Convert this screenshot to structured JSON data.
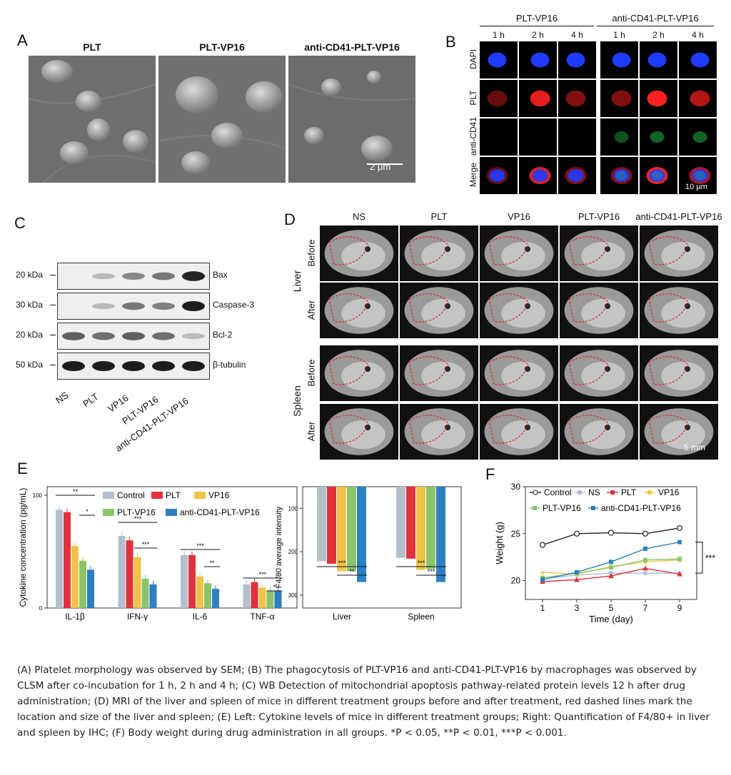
{
  "panelA": {
    "label": "A",
    "titles": [
      "PLT",
      "PLT-VP16",
      "anti-CD41-PLT-VP16"
    ],
    "scalebar": "2 μm"
  },
  "panelB": {
    "label": "B",
    "groups": [
      "PLT-VP16",
      "anti-CD41-PLT-VP16"
    ],
    "times": [
      "1 h",
      "2 h",
      "4 h",
      "1 h",
      "2 h",
      "4 h"
    ],
    "rows": [
      "DAPI",
      "PLT",
      "anti-CD41",
      "Merge"
    ],
    "scalebar": "10 μm"
  },
  "panelC": {
    "label": "C",
    "blots": [
      {
        "marker": "20 kDa",
        "protein": "Bax"
      },
      {
        "marker": "30 kDa",
        "protein": "Caspase-3"
      },
      {
        "marker": "20 kDa",
        "protein": "Bcl-2"
      },
      {
        "marker": "50 kDa",
        "protein": "β-tubulin"
      }
    ],
    "lanes": [
      "NS",
      "PLT",
      "VP16",
      "PLT-VP16",
      "anti-CD41-PLT-VP16"
    ]
  },
  "panelD": {
    "label": "D",
    "columns": [
      "NS",
      "PLT",
      "VP16",
      "PLT-VP16",
      "anti-CD41-PLT-VP16"
    ],
    "organs": [
      "Liver",
      "Spleen"
    ],
    "timepoints": [
      "Before",
      "After"
    ],
    "scalebar": "5 mm"
  },
  "panelE": {
    "label": "E",
    "colors": [
      "#b4bfcc",
      "#e0323c",
      "#efc34a",
      "#8cc46c",
      "#2e7fc2"
    ],
    "legend": [
      "Control",
      "PLT",
      "VP16",
      "PLT-VP16",
      "anti-CD41-PLT-VP16"
    ],
    "left_ylabel": "Cytokine concentration (pg/mL)",
    "right_ylabel": "F4/80 average intensity",
    "left_yticks": [
      "0",
      "100"
    ],
    "right_yticks": [
      "100",
      "200",
      "300"
    ],
    "left_categories": [
      "IL-1β",
      "IFN-γ",
      "IL-6",
      "TNF-α"
    ],
    "right_categories": [
      "Liver",
      "Spleen"
    ],
    "sig_left": [
      "**",
      "*",
      "***",
      "***",
      "***",
      "**",
      "***",
      "*"
    ],
    "sig_right": [
      "***",
      "**",
      "***",
      "***"
    ]
  },
  "panelF": {
    "label": "F",
    "legend_row1": [
      "Control",
      "NS",
      "PLT",
      "VP16"
    ],
    "legend_row2": [
      "PLT-VP16",
      "anti-CD41-PLT-VP16"
    ],
    "xlabel": "Time (day)",
    "ylabel": "Weight (g)",
    "xticks": [
      "1",
      "3",
      "5",
      "7",
      "9"
    ],
    "yticks": [
      "20",
      "25",
      "30"
    ],
    "sig": "***"
  },
  "chart_data": [
    {
      "type": "bar",
      "categories": [
        "IL-1β",
        "IFN-γ",
        "IL-6",
        "TNF-α"
      ],
      "ylim": [
        0,
        100
      ],
      "series": [
        {
          "name": "Control",
          "values": [
            87,
            64,
            47,
            21
          ]
        },
        {
          "name": "PLT",
          "values": [
            85,
            60,
            47,
            23
          ]
        },
        {
          "name": "VP16",
          "values": [
            55,
            45,
            28,
            18
          ]
        },
        {
          "name": "PLT-VP16",
          "values": [
            42,
            26,
            22,
            15
          ]
        },
        {
          "name": "anti-CD41-PLT-VP16",
          "values": [
            34,
            21,
            17,
            15
          ]
        }
      ]
    },
    {
      "type": "bar",
      "categories": [
        "Liver",
        "Spleen"
      ],
      "ylim": [
        330,
        50
      ],
      "series": [
        {
          "name": "Control",
          "values": [
            222,
            214
          ]
        },
        {
          "name": "PLT",
          "values": [
            228,
            216
          ]
        },
        {
          "name": "VP16",
          "values": [
            245,
            242
          ]
        },
        {
          "name": "PLT-VP16",
          "values": [
            245,
            240
          ]
        },
        {
          "name": "anti-CD41-PLT-VP16",
          "values": [
            270,
            270
          ]
        }
      ]
    },
    {
      "type": "line",
      "x": [
        1,
        3,
        5,
        7,
        9
      ],
      "xlim": [
        0,
        10
      ],
      "ylim": [
        18,
        30
      ],
      "series": [
        {
          "name": "Control",
          "values": [
            23.8,
            25.0,
            25.1,
            25.0,
            25.6
          ]
        },
        {
          "name": "NS",
          "values": [
            20.2,
            20.6,
            20.8,
            20.8,
            20.8
          ]
        },
        {
          "name": "PLT",
          "values": [
            19.9,
            20.1,
            20.5,
            21.3,
            20.7
          ]
        },
        {
          "name": "VP16",
          "values": [
            20.9,
            20.7,
            21.5,
            22.0,
            22.2
          ]
        },
        {
          "name": "PLT-VP16",
          "values": [
            20.3,
            20.8,
            21.4,
            22.2,
            22.3
          ]
        },
        {
          "name": "anti-CD41-PLT-VP16",
          "values": [
            20.1,
            20.9,
            22.0,
            23.4,
            24.1
          ]
        }
      ]
    }
  ],
  "caption": "(A) Platelet morphology was observed by SEM; (B) The phagocytosis of PLT-VP16 and anti-CD41-PLT-VP16 by macrophages was observed by CLSM after co-incubation for 1 h, 2 h and 4 h; (C) WB Detection of mitochondrial apoptosis pathway-related protein levels 12 h after drug administration; (D) MRI of the liver and spleen of mice in different treatment groups before and after treatment, red dashed lines mark the location and size of the liver and spleen; (E) Left: Cytokine levels of mice in different treatment groups; Right: Quantification of F4/80+ in liver and spleen by IHC; (F) Body weight during drug administration in all groups. *P < 0.05, **P < 0.01, ***P < 0.001."
}
